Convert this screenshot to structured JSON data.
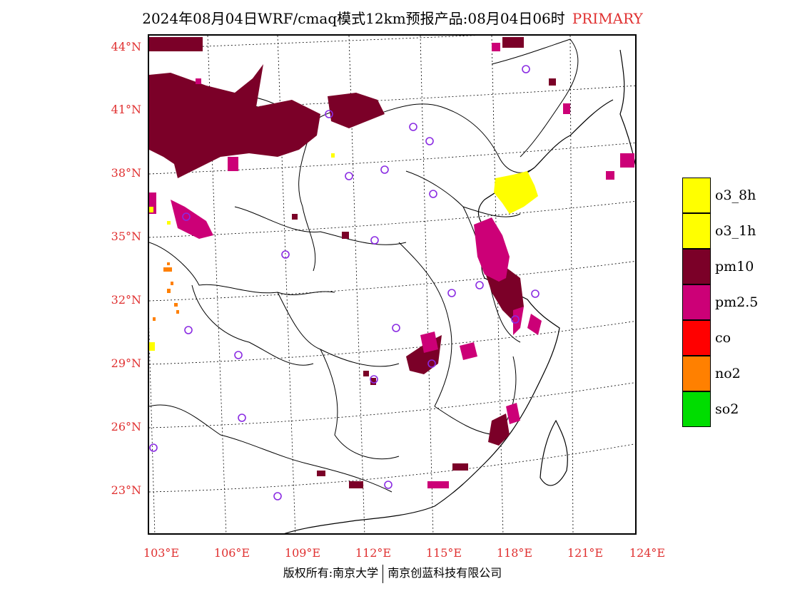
{
  "header": {
    "title": "2024年08月04日WRF/cmaq模式12km预报产品:08月04日06时",
    "status": "PRIMARY",
    "status_color": "#e03030"
  },
  "axes": {
    "lat_labels": [
      "44°N",
      "41°N",
      "38°N",
      "35°N",
      "32°N",
      "29°N",
      "26°N",
      "23°N"
    ],
    "lon_labels": [
      "103°E",
      "106°E",
      "109°E",
      "112°E",
      "115°E",
      "118°E",
      "121°E",
      "124°E"
    ],
    "label_color": "#e03030"
  },
  "legend": {
    "items": [
      {
        "label": "o3_8h",
        "color": "#ffff00"
      },
      {
        "label": "o3_1h",
        "color": "#ffff00"
      },
      {
        "label": "pm10",
        "color": "#7b0028"
      },
      {
        "label": "pm2.5",
        "color": "#cc0077"
      },
      {
        "label": "co",
        "color": "#ff0000"
      },
      {
        "label": "no2",
        "color": "#ff8000"
      },
      {
        "label": "so2",
        "color": "#00dd00"
      }
    ]
  },
  "footer": {
    "left": "版权所有:南京大学",
    "right": "南京创蓝科技有限公司"
  },
  "map": {
    "marker_color": "#8a2be2",
    "boundary_color": "#000000",
    "grid_style": "dotted"
  }
}
